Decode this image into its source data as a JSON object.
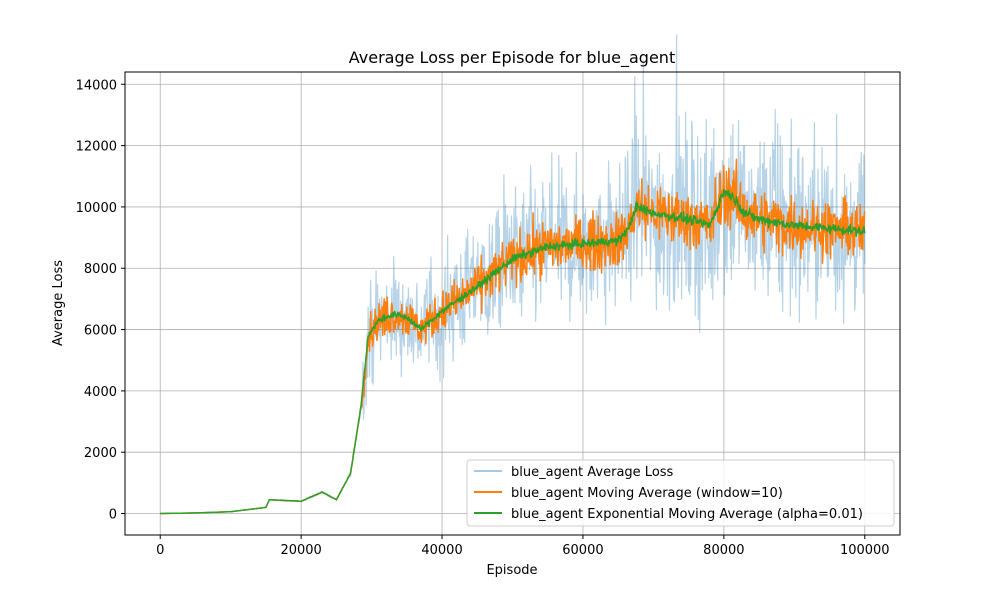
{
  "chart_data": {
    "type": "line",
    "title": "Average Loss per Episode for blue_agent",
    "xlabel": "Episode",
    "ylabel": "Average Loss",
    "xlim": [
      -5000,
      105000
    ],
    "ylim": [
      -700,
      14400
    ],
    "xticks": [
      0,
      20000,
      40000,
      60000,
      80000,
      100000
    ],
    "yticks": [
      0,
      2000,
      4000,
      6000,
      8000,
      10000,
      12000,
      14000
    ],
    "grid": true,
    "legend_position": "lower-right",
    "series": [
      {
        "name": "blue_agent Average Loss",
        "color": "#1f77b4",
        "opacity": 0.32,
        "description_points": {
          "x": [
            0,
            5000,
            10000,
            15000,
            15500,
            20000,
            23000,
            25000,
            27000,
            28500,
            29500,
            31000,
            33000,
            35000,
            37000,
            40000,
            45000,
            50000,
            55000,
            60000,
            65000,
            66500,
            67500,
            70000,
            75000,
            78000,
            80000,
            81000,
            83000,
            85000,
            90000,
            95000,
            100000
          ],
          "values": [
            0,
            20,
            60,
            200,
            450,
            400,
            700,
            450,
            1300,
            3500,
            5800,
            6300,
            6500,
            6400,
            6000,
            6600,
            7400,
            8300,
            8700,
            8800,
            8900,
            9300,
            10000,
            9800,
            9600,
            9400,
            10500,
            10400,
            9800,
            9600,
            9400,
            9300,
            9200
          ]
        }
      },
      {
        "name": "blue_agent Moving Average (window=10)",
        "color": "#ff7f0e",
        "opacity": 1,
        "description_points": {
          "x": [
            0,
            5000,
            10000,
            15000,
            15500,
            20000,
            23000,
            25000,
            27000,
            28500,
            29500,
            31000,
            33000,
            35000,
            37000,
            40000,
            45000,
            50000,
            55000,
            60000,
            65000,
            66500,
            67500,
            70000,
            75000,
            78000,
            80000,
            81000,
            83000,
            85000,
            90000,
            95000,
            100000
          ],
          "values": [
            0,
            20,
            60,
            200,
            450,
            400,
            700,
            450,
            1300,
            3500,
            5800,
            6300,
            6500,
            6400,
            6000,
            6600,
            7400,
            8300,
            8700,
            8800,
            8900,
            9300,
            10000,
            9800,
            9600,
            9400,
            10500,
            10400,
            9800,
            9600,
            9400,
            9300,
            9200
          ]
        }
      },
      {
        "name": "blue_agent Exponential Moving Average (alpha=0.01)",
        "color": "#2ca02c",
        "opacity": 1,
        "description_points": {
          "x": [
            0,
            5000,
            10000,
            15000,
            15500,
            20000,
            23000,
            25000,
            27000,
            28500,
            29500,
            31000,
            33000,
            35000,
            37000,
            40000,
            45000,
            50000,
            55000,
            60000,
            65000,
            66500,
            67500,
            70000,
            75000,
            78000,
            80000,
            81000,
            83000,
            85000,
            90000,
            95000,
            100000
          ],
          "values": [
            0,
            20,
            60,
            200,
            450,
            400,
            700,
            450,
            1300,
            3500,
            5800,
            6300,
            6500,
            6400,
            6000,
            6600,
            7400,
            8300,
            8700,
            8800,
            8900,
            9300,
            10000,
            9800,
            9600,
            9400,
            10500,
            10400,
            9800,
            9600,
            9400,
            9300,
            9200
          ]
        }
      }
    ]
  }
}
